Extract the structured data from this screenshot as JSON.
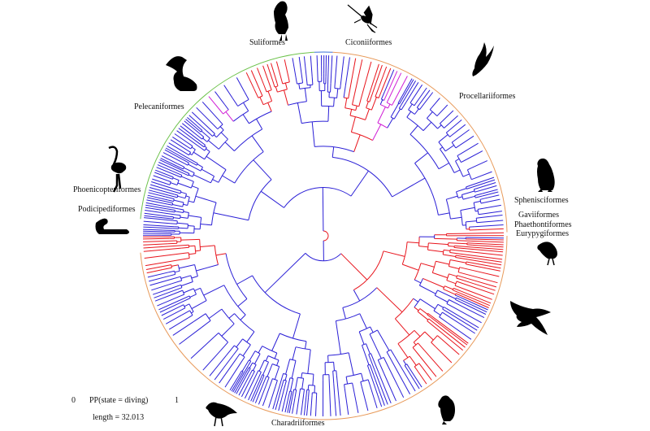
{
  "orders": [
    {
      "id": "suliformes",
      "label": "Suliformes"
    },
    {
      "id": "ciconiiformes",
      "label": "Ciconiiformes"
    },
    {
      "id": "procellariiformes",
      "label": "Procellariiformes"
    },
    {
      "id": "pelecaniformes",
      "label": "Pelecaniformes"
    },
    {
      "id": "phoenicopteriformes",
      "label": "Phoenicopteriformes"
    },
    {
      "id": "podicipediformes",
      "label": "Podicipediformes"
    },
    {
      "id": "sphenisciformes",
      "label": "Sphenisciformes"
    },
    {
      "id": "gaviiformes",
      "label": "Gaviiformes"
    },
    {
      "id": "phaethontiformes",
      "label": "Phaethontiformes"
    },
    {
      "id": "eurypygiformes",
      "label": "Eurypygiformes"
    },
    {
      "id": "charadriiformes",
      "label": "Charadriiformes"
    }
  ],
  "legend": {
    "min_label": "0",
    "title": "PP(state = diving)",
    "max_label": "1",
    "length_label": "length = 32.013"
  },
  "colors": {
    "non_diving": "#2a1fd6",
    "intermediate": "#d01fd6",
    "diving": "#e8141c",
    "ring_green": "#6cc24a",
    "ring_orange": "#e89a5a",
    "ring_blue": "#3a6fd8",
    "silhouette": "#000000"
  },
  "silhouettes": [
    "cormorant-icon",
    "stork-icon",
    "petrel-icon",
    "pelican-icon",
    "flamingo-icon",
    "grebe-icon",
    "penguin-icon",
    "sunbittern-icon",
    "skua-icon",
    "puffin-icon",
    "sandpiper-icon"
  ]
}
